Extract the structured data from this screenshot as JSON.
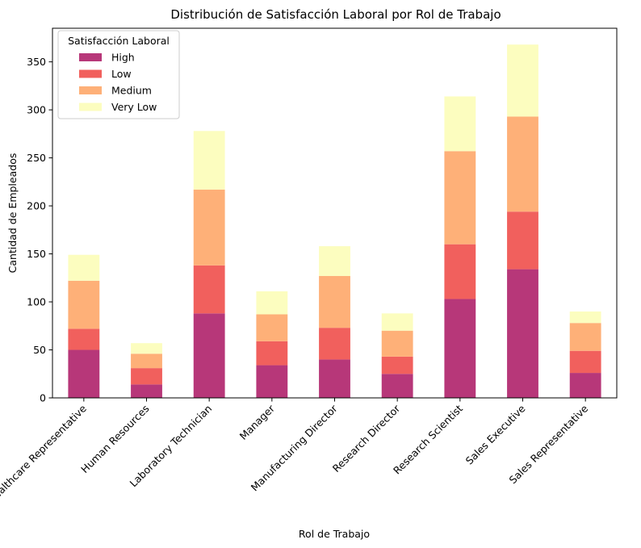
{
  "chart_data": {
    "type": "bar",
    "stacked": true,
    "title": "Distribución de Satisfacción Laboral por Rol de Trabajo",
    "xlabel": "Rol de Trabajo",
    "ylabel": "Cantidad de Empleados",
    "ylim": [
      0,
      385
    ],
    "yticks": [
      0,
      50,
      100,
      150,
      200,
      250,
      300,
      350
    ],
    "grid": false,
    "legend": {
      "title": "Satisfacción Laboral",
      "position": "top-left"
    },
    "categories": [
      "Healthcare Representative",
      "Human Resources",
      "Laboratory Technician",
      "Manager",
      "Manufacturing Director",
      "Research Director",
      "Research Scientist",
      "Sales Executive",
      "Sales Representative"
    ],
    "series": [
      {
        "name": "High",
        "color": "#b73779",
        "values": [
          50,
          14,
          88,
          34,
          40,
          25,
          103,
          134,
          26
        ]
      },
      {
        "name": "Low",
        "color": "#f1605d",
        "values": [
          22,
          17,
          50,
          25,
          33,
          18,
          57,
          60,
          23
        ]
      },
      {
        "name": "Medium",
        "color": "#feb078",
        "values": [
          50,
          15,
          79,
          28,
          54,
          27,
          97,
          99,
          29
        ]
      },
      {
        "name": "Very Low",
        "color": "#fcfdbf",
        "values": [
          27,
          11,
          61,
          24,
          31,
          18,
          57,
          75,
          12
        ]
      }
    ]
  }
}
